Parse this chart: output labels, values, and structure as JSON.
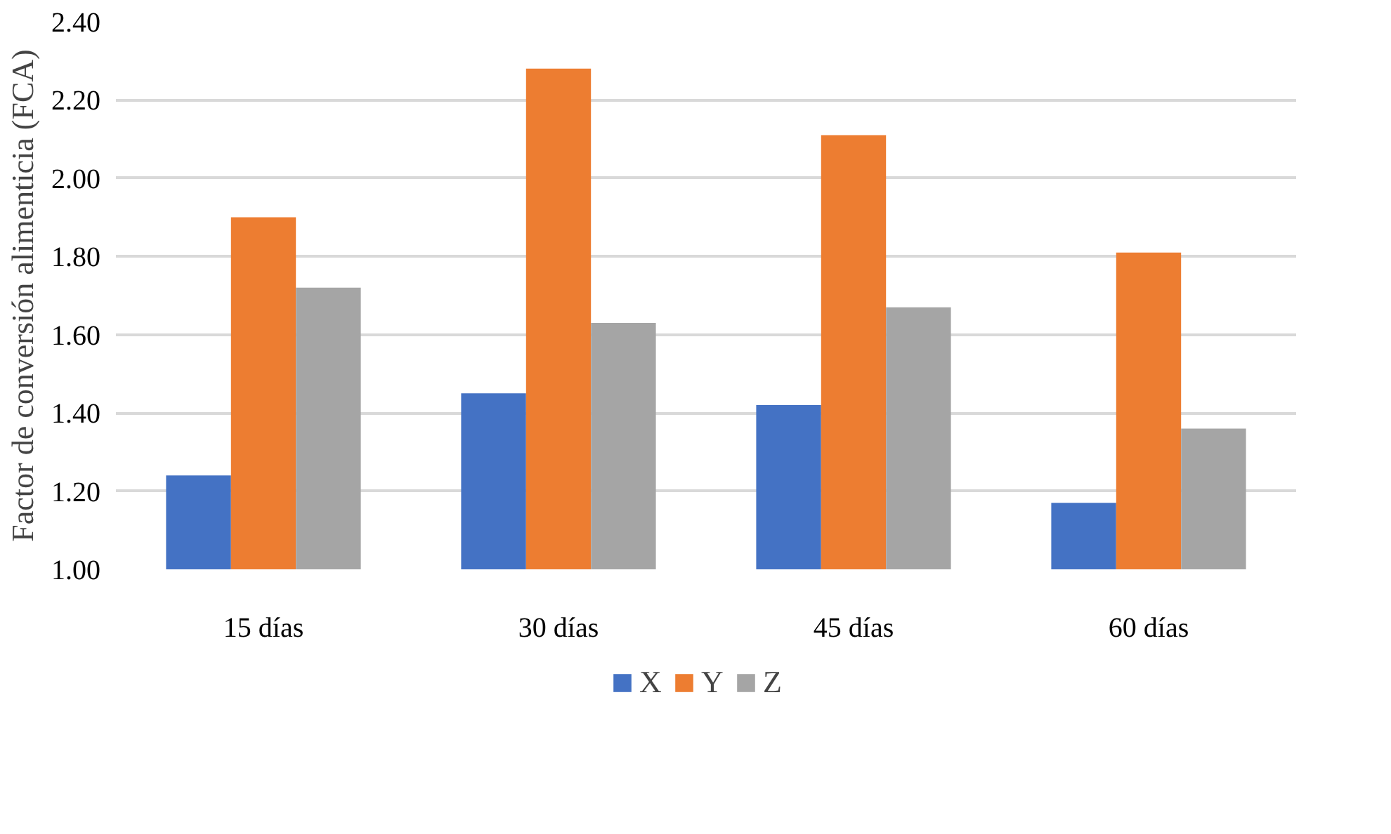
{
  "chart_data": {
    "type": "bar",
    "ylabel": "Factor de conversión alimenticia (FCA)",
    "categories": [
      "15 días",
      "30 días",
      "45 días",
      "60 días"
    ],
    "series": [
      {
        "name": "X",
        "color": "#4472c4",
        "values": [
          1.24,
          1.45,
          1.42,
          1.17
        ]
      },
      {
        "name": "Y",
        "color": "#ed7d31",
        "values": [
          1.9,
          2.28,
          2.11,
          1.81
        ]
      },
      {
        "name": "Z",
        "color": "#a5a5a5",
        "values": [
          1.72,
          1.63,
          1.67,
          1.36
        ]
      }
    ],
    "ylim": [
      1.0,
      2.4
    ],
    "yticks": [
      {
        "value": 1.0,
        "label": "1.00"
      },
      {
        "value": 1.2,
        "label": "1.20"
      },
      {
        "value": 1.4,
        "label": "1.40"
      },
      {
        "value": 1.6,
        "label": "1.60"
      },
      {
        "value": 1.8,
        "label": "1.80"
      },
      {
        "value": 2.0,
        "label": "2.00"
      },
      {
        "value": 2.2,
        "label": "2.20"
      },
      {
        "value": 2.4,
        "label": "2.40"
      }
    ],
    "grid": "y",
    "legend": "bottom"
  }
}
